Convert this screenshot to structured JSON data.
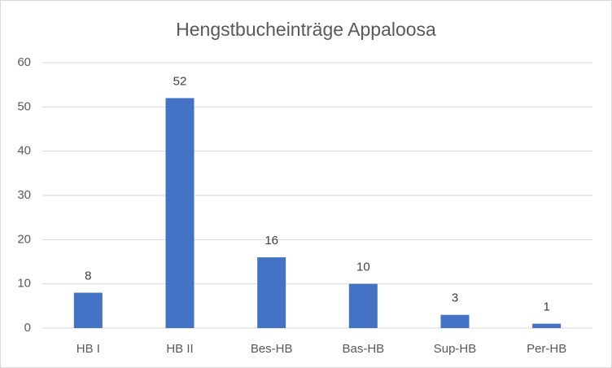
{
  "chart_data": {
    "type": "bar",
    "title": "Hengstbucheinträge Appaloosa",
    "categories": [
      "HB I",
      "HB II",
      "Bes-HB",
      "Bas-HB",
      "Sup-HB",
      "Per-HB"
    ],
    "values": [
      8,
      52,
      16,
      10,
      3,
      1
    ],
    "color": "#4472c4",
    "ylim": [
      0,
      60
    ],
    "yticks": [
      0,
      10,
      20,
      30,
      40,
      50,
      60
    ],
    "grid": true,
    "data_labels": true
  }
}
